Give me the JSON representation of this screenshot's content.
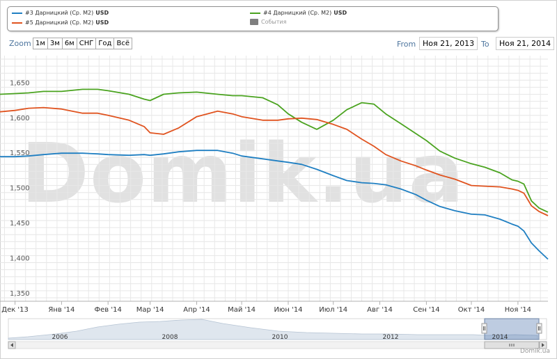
{
  "legend": {
    "items": [
      {
        "label": "#3 Дарницкий (Ср. M2)",
        "currency": "USD",
        "color": "#1f7fc2"
      },
      {
        "label": "#5 Дарницкий (Ср. M2)",
        "currency": "USD",
        "color": "#e0531f"
      },
      {
        "label": "#4 Дарницкий (Ср. M2)",
        "currency": "USD",
        "color": "#4aa31f"
      },
      {
        "label": "События",
        "color": "#7f7f7f"
      }
    ]
  },
  "toolbar": {
    "zoom_label": "Zoom",
    "buttons": [
      "1м",
      "3м",
      "6м",
      "СНГ",
      "Год",
      "Всё"
    ],
    "from_label": "From",
    "from_value": "Ноя 21, 2013",
    "to_label": "To",
    "to_value": "Ноя 21, 2014"
  },
  "watermark": "Domik.ua",
  "credit": "Domik.ua",
  "chart_data": {
    "type": "line",
    "x": [
      "2013-11-21",
      "2013-12-01",
      "2013-12-10",
      "2013-12-20",
      "2014-01-01",
      "2014-01-15",
      "2014-01-25",
      "2014-02-01",
      "2014-02-15",
      "2014-02-25",
      "2014-03-01",
      "2014-03-10",
      "2014-03-20",
      "2014-04-01",
      "2014-04-15",
      "2014-04-25",
      "2014-05-01",
      "2014-05-15",
      "2014-05-25",
      "2014-06-01",
      "2014-06-10",
      "2014-06-20",
      "2014-07-01",
      "2014-07-10",
      "2014-07-20",
      "2014-07-28",
      "2014-08-05",
      "2014-08-15",
      "2014-08-25",
      "2014-09-01",
      "2014-09-10",
      "2014-09-20",
      "2014-10-01",
      "2014-10-10",
      "2014-10-20",
      "2014-10-28",
      "2014-11-01",
      "2014-11-05",
      "2014-11-10",
      "2014-11-15",
      "2014-11-21"
    ],
    "series": [
      {
        "name": "#3 Дарницкий (Ср. M2)",
        "color": "#1f7fc2",
        "values": [
          1.551,
          1.551,
          1.552,
          1.554,
          1.556,
          1.556,
          1.555,
          1.554,
          1.553,
          1.554,
          1.553,
          1.555,
          1.558,
          1.56,
          1.56,
          1.556,
          1.552,
          1.548,
          1.545,
          1.543,
          1.54,
          1.533,
          1.524,
          1.517,
          1.514,
          1.513,
          1.511,
          1.505,
          1.497,
          1.489,
          1.48,
          1.474,
          1.469,
          1.468,
          1.462,
          1.455,
          1.452,
          1.445,
          1.428,
          1.417,
          1.405
        ]
      },
      {
        "name": "#5 Дарницкий (Ср. M2)",
        "color": "#e0531f",
        "values": [
          1.615,
          1.617,
          1.62,
          1.621,
          1.619,
          1.613,
          1.613,
          1.61,
          1.603,
          1.594,
          1.585,
          1.583,
          1.592,
          1.608,
          1.616,
          1.612,
          1.608,
          1.603,
          1.603,
          1.605,
          1.606,
          1.604,
          1.597,
          1.59,
          1.576,
          1.566,
          1.554,
          1.545,
          1.538,
          1.532,
          1.525,
          1.519,
          1.51,
          1.509,
          1.508,
          1.505,
          1.503,
          1.499,
          1.481,
          1.473,
          1.467
        ]
      },
      {
        "name": "#4 Дарницкий (Ср. M2)",
        "color": "#4aa31f",
        "values": [
          1.64,
          1.641,
          1.642,
          1.644,
          1.644,
          1.647,
          1.647,
          1.645,
          1.64,
          1.633,
          1.631,
          1.64,
          1.642,
          1.643,
          1.64,
          1.638,
          1.638,
          1.635,
          1.625,
          1.612,
          1.6,
          1.59,
          1.603,
          1.618,
          1.628,
          1.626,
          1.612,
          1.598,
          1.584,
          1.574,
          1.559,
          1.549,
          1.541,
          1.536,
          1.528,
          1.518,
          1.516,
          1.512,
          1.488,
          1.478,
          1.472
        ]
      }
    ],
    "y_ticks": [
      "1,350",
      "1,400",
      "1,450",
      "1,500",
      "1,550",
      "1,600",
      "1,650"
    ],
    "ylim": [
      1.345,
      1.695
    ],
    "x_ticks": [
      {
        "date": "2013-12-01",
        "label": "Дек '13"
      },
      {
        "date": "2014-01-01",
        "label": "Янв '14"
      },
      {
        "date": "2014-02-01",
        "label": "Фев '14"
      },
      {
        "date": "2014-03-01",
        "label": "Мар '14"
      },
      {
        "date": "2014-04-01",
        "label": "Апр '14"
      },
      {
        "date": "2014-05-01",
        "label": "Май '14"
      },
      {
        "date": "2014-06-01",
        "label": "Июн '14"
      },
      {
        "date": "2014-07-01",
        "label": "Июл '14"
      },
      {
        "date": "2014-08-01",
        "label": "Авг '14"
      },
      {
        "date": "2014-09-01",
        "label": "Сен '14"
      },
      {
        "date": "2014-10-01",
        "label": "Окт '14"
      },
      {
        "date": "2014-11-01",
        "label": "Ноя '14"
      }
    ],
    "navigator_labels": [
      "2006",
      "2008",
      "2010",
      "2012",
      "2014"
    ],
    "grid": true
  }
}
